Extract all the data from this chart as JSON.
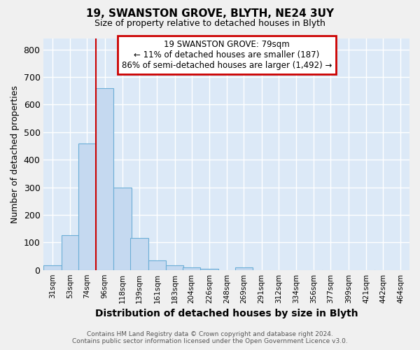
{
  "title": "19, SWANSTON GROVE, BLYTH, NE24 3UY",
  "subtitle": "Size of property relative to detached houses in Blyth",
  "xlabel": "Distribution of detached houses by size in Blyth",
  "ylabel": "Number of detached properties",
  "footer_line1": "Contains HM Land Registry data © Crown copyright and database right 2024.",
  "footer_line2": "Contains public sector information licensed under the Open Government Licence v3.0.",
  "bar_labels": [
    "31sqm",
    "53sqm",
    "74sqm",
    "96sqm",
    "118sqm",
    "139sqm",
    "161sqm",
    "183sqm",
    "204sqm",
    "226sqm",
    "248sqm",
    "269sqm",
    "291sqm",
    "312sqm",
    "334sqm",
    "356sqm",
    "377sqm",
    "399sqm",
    "421sqm",
    "442sqm",
    "464sqm"
  ],
  "bar_values": [
    18,
    125,
    460,
    660,
    300,
    115,
    35,
    17,
    10,
    4,
    0,
    10,
    0,
    0,
    0,
    0,
    0,
    0,
    0,
    0,
    0
  ],
  "bar_color": "#c5d9f0",
  "bar_edgecolor": "#6baed6",
  "plot_bg_color": "#dce9f7",
  "fig_bg_color": "#f0f0f0",
  "grid_color": "#ffffff",
  "annotation_text": "19 SWANSTON GROVE: 79sqm\n← 11% of detached houses are smaller (187)\n86% of semi-detached houses are larger (1,492) →",
  "annotation_box_color": "#ffffff",
  "annotation_box_edgecolor": "#cc0000",
  "vline_color": "#cc0000",
  "vline_x_index": 2,
  "ylim": [
    0,
    840
  ],
  "yticks": [
    0,
    100,
    200,
    300,
    400,
    500,
    600,
    700,
    800
  ],
  "bin_centers": [
    31,
    53,
    74,
    96,
    118,
    139,
    161,
    183,
    204,
    226,
    248,
    269,
    291,
    312,
    334,
    356,
    377,
    399,
    421,
    442,
    464
  ],
  "bin_width": 22
}
